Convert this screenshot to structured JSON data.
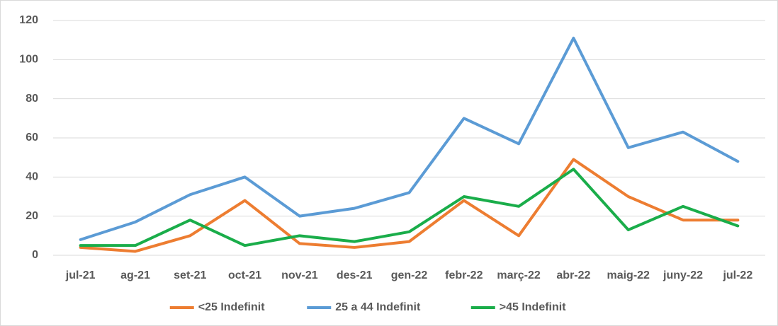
{
  "chart_data": {
    "type": "line",
    "categories": [
      "jul-21",
      "ag-21",
      "set-21",
      "oct-21",
      "nov-21",
      "des-21",
      "gen-22",
      "febr-22",
      "març-22",
      "abr-22",
      "maig-22",
      "juny-22",
      "jul-22"
    ],
    "series": [
      {
        "name": "<25 Indefinit",
        "color": "#ed7d31",
        "values": [
          4,
          2,
          10,
          28,
          6,
          4,
          7,
          28,
          10,
          49,
          30,
          18,
          18
        ]
      },
      {
        "name": "25 a 44 Indefinit",
        "color": "#5b9bd5",
        "values": [
          8,
          17,
          31,
          40,
          20,
          24,
          32,
          70,
          57,
          111,
          55,
          63,
          48
        ]
      },
      {
        "name": ">45 Indefinit",
        "color": "#1aad4a",
        "values": [
          5,
          5,
          18,
          5,
          10,
          7,
          12,
          30,
          25,
          44,
          13,
          25,
          15
        ]
      }
    ],
    "ylim": [
      0,
      120
    ],
    "yticks": [
      0,
      20,
      40,
      60,
      80,
      100,
      120
    ],
    "grid": true,
    "legend": "bottom"
  }
}
